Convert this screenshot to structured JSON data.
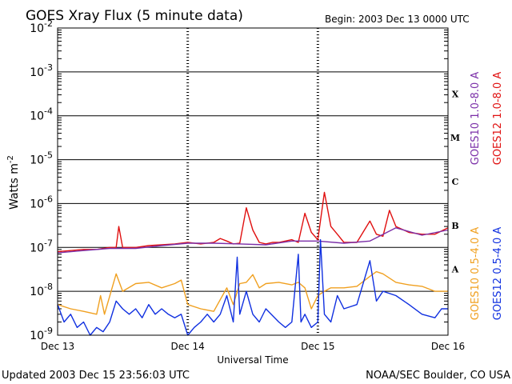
{
  "chart_data": {
    "type": "line",
    "title": "GOES Xray Flux (5 minute data)",
    "begin": "Begin:  2003 Dec 13 0000 UTC",
    "ylabel": "Watts m",
    "ylabel_sup": "-2",
    "xlabel": "Universal Time",
    "x_ticks": [
      "Dec 13",
      "Dec 14",
      "Dec 15",
      "Dec 16"
    ],
    "x_domain_days": [
      0,
      3
    ],
    "y_scale": "log",
    "y_exponents": [
      -9,
      -8,
      -7,
      -6,
      -5,
      -4,
      -3,
      -2
    ],
    "y_tick_base": "10",
    "ylim": [
      1e-09,
      0.01
    ],
    "grid": true,
    "flare_classes": [
      {
        "label": "X",
        "exp": -4
      },
      {
        "label": "M",
        "exp": -5
      },
      {
        "label": "C",
        "exp": -6
      },
      {
        "label": "B",
        "exp": -7
      },
      {
        "label": "A",
        "exp": -8
      }
    ],
    "legend_right": [
      {
        "text": "GOES10 1.0-8.0 A",
        "color": "#7b2fa8"
      },
      {
        "text": "GOES12 1.0-8.0 A",
        "color": "#e01010"
      },
      {
        "text": "GOES10 0.5-4.0 A",
        "color": "#f0a020"
      },
      {
        "text": "GOES12 0.5-4.0 A",
        "color": "#1030e0"
      }
    ],
    "series": [
      {
        "name": "GOES12 1.0-8.0 A",
        "color": "#e01010",
        "x": [
          0.0,
          0.1,
          0.2,
          0.3,
          0.4,
          0.45,
          0.47,
          0.5,
          0.6,
          0.7,
          0.8,
          0.9,
          1.0,
          1.1,
          1.2,
          1.25,
          1.3,
          1.35,
          1.4,
          1.45,
          1.5,
          1.55,
          1.6,
          1.65,
          1.7,
          1.8,
          1.85,
          1.9,
          1.95,
          2.0,
          2.05,
          2.1,
          2.15,
          2.2,
          2.3,
          2.4,
          2.45,
          2.5,
          2.55,
          2.6,
          2.7,
          2.8,
          2.9,
          3.0
        ],
        "y": [
          8e-08,
          8.5e-08,
          9e-08,
          9e-08,
          1e-07,
          1e-07,
          3e-07,
          1e-07,
          1e-07,
          1.1e-07,
          1.15e-07,
          1.2e-07,
          1.3e-07,
          1.2e-07,
          1.3e-07,
          1.6e-07,
          1.4e-07,
          1.2e-07,
          1.25e-07,
          8e-07,
          2.5e-07,
          1.3e-07,
          1.2e-07,
          1.3e-07,
          1.3e-07,
          1.5e-07,
          1.3e-07,
          6e-07,
          2.2e-07,
          1.5e-07,
          1.8e-06,
          3e-07,
          2e-07,
          1.3e-07,
          1.3e-07,
          4e-07,
          2e-07,
          1.8e-07,
          7e-07,
          3e-07,
          2.2e-07,
          2e-07,
          2e-07,
          2.8e-07
        ]
      },
      {
        "name": "GOES10 1.0-8.0 A",
        "color": "#7b2fa8",
        "x": [
          0.0,
          0.2,
          0.4,
          0.6,
          0.8,
          1.0,
          1.2,
          1.4,
          1.6,
          1.8,
          2.0,
          2.2,
          2.4,
          2.6,
          2.8,
          3.0
        ],
        "y": [
          7.5e-08,
          8.5e-08,
          9.5e-08,
          9.5e-08,
          1.1e-07,
          1.25e-07,
          1.25e-07,
          1.2e-07,
          1.15e-07,
          1.4e-07,
          1.4e-07,
          1.25e-07,
          1.4e-07,
          2.8e-07,
          1.9e-07,
          2.5e-07
        ]
      },
      {
        "name": "GOES10 0.5-4.0 A",
        "color": "#f0a020",
        "x": [
          0.0,
          0.1,
          0.2,
          0.3,
          0.33,
          0.36,
          0.45,
          0.5,
          0.6,
          0.7,
          0.8,
          0.9,
          0.95,
          1.0,
          1.1,
          1.2,
          1.3,
          1.35,
          1.4,
          1.45,
          1.5,
          1.55,
          1.6,
          1.7,
          1.8,
          1.85,
          1.9,
          1.95,
          2.0,
          2.05,
          2.1,
          2.2,
          2.3,
          2.4,
          2.45,
          2.5,
          2.6,
          2.7,
          2.8,
          2.9,
          3.0
        ],
        "y": [
          5e-09,
          4e-09,
          3.5e-09,
          3e-09,
          8e-09,
          3e-09,
          2.5e-08,
          1e-08,
          1.5e-08,
          1.6e-08,
          1.2e-08,
          1.5e-08,
          1.8e-08,
          5e-09,
          4e-09,
          3.5e-09,
          1.2e-08,
          5e-09,
          1.5e-08,
          1.6e-08,
          2.4e-08,
          1.2e-08,
          1.5e-08,
          1.6e-08,
          1.4e-08,
          1.6e-08,
          1.2e-08,
          4e-09,
          8e-09,
          1e-08,
          1.2e-08,
          1.2e-08,
          1.3e-08,
          2.2e-08,
          2.8e-08,
          2.5e-08,
          1.6e-08,
          1.4e-08,
          1.3e-08,
          1e-08,
          1e-08
        ]
      },
      {
        "name": "GOES12 0.5-4.0 A",
        "color": "#1030e0",
        "x": [
          0.0,
          0.05,
          0.1,
          0.15,
          0.2,
          0.25,
          0.3,
          0.35,
          0.4,
          0.45,
          0.5,
          0.55,
          0.6,
          0.65,
          0.7,
          0.75,
          0.8,
          0.85,
          0.9,
          0.95,
          1.0,
          1.05,
          1.1,
          1.15,
          1.2,
          1.25,
          1.3,
          1.35,
          1.38,
          1.4,
          1.45,
          1.5,
          1.55,
          1.6,
          1.7,
          1.75,
          1.8,
          1.85,
          1.87,
          1.9,
          1.95,
          2.0,
          2.02,
          2.05,
          2.1,
          2.15,
          2.2,
          2.3,
          2.4,
          2.45,
          2.5,
          2.6,
          2.7,
          2.8,
          2.9,
          2.95,
          3.0
        ],
        "y": [
          5e-09,
          2e-09,
          3e-09,
          1.5e-09,
          2e-09,
          1e-09,
          1.5e-09,
          1.2e-09,
          2e-09,
          6e-09,
          4e-09,
          3e-09,
          4e-09,
          2.5e-09,
          5e-09,
          3e-09,
          4e-09,
          3e-09,
          2.5e-09,
          3e-09,
          1e-09,
          1.5e-09,
          2e-09,
          3e-09,
          2e-09,
          3e-09,
          8e-09,
          2e-09,
          6e-08,
          3e-09,
          1e-08,
          3e-09,
          2e-09,
          4e-09,
          2e-09,
          1.5e-09,
          2e-09,
          7e-08,
          2e-09,
          3e-09,
          1.5e-09,
          2e-09,
          1.5e-07,
          3e-09,
          2e-09,
          8e-09,
          4e-09,
          5e-09,
          5e-08,
          6e-09,
          1e-08,
          8e-09,
          5e-09,
          3e-09,
          2.5e-09,
          4e-09,
          4e-09
        ]
      }
    ]
  },
  "footer": {
    "updated": "Updated 2003 Dec 15 23:56:03 UTC",
    "credit": "NOAA/SEC Boulder, CO USA"
  }
}
